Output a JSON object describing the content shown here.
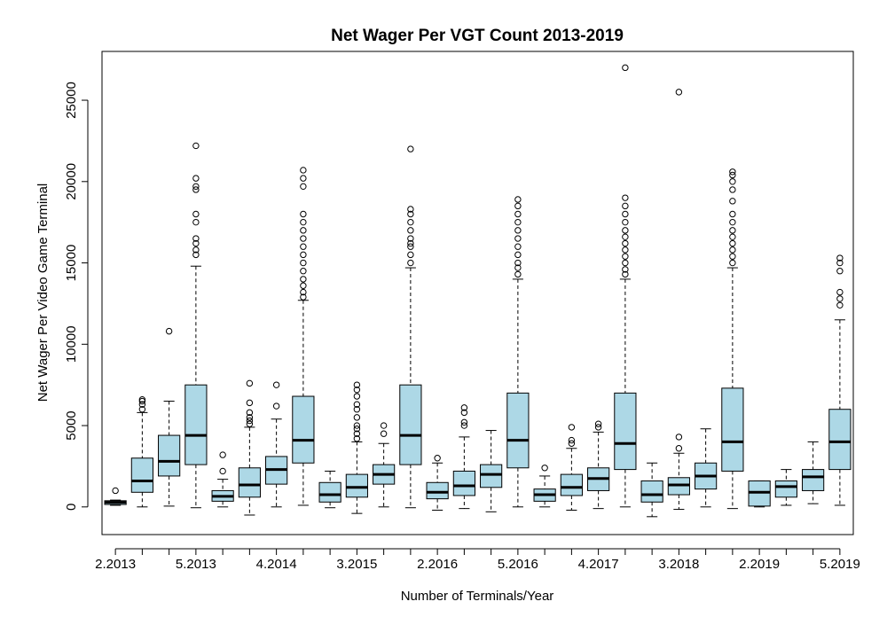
{
  "chart_data": {
    "type": "boxplot",
    "title": "Net Wager Per VGT Count 2013-2019",
    "xlabel": "Number of Terminals/Year",
    "ylabel": "Net Wager Per Video Game Terminal",
    "ylim": [
      -1700,
      28000
    ],
    "y_ticks": [
      0,
      5000,
      10000,
      15000,
      20000,
      25000
    ],
    "x_tick_labels": [
      "2.2013",
      "5.2013",
      "4.2014",
      "3.2015",
      "2.2016",
      "5.2016",
      "4.2017",
      "3.2018",
      "2.2019",
      "5.2019"
    ],
    "x_tick_label_positions": [
      1,
      4,
      7,
      10,
      13,
      16,
      19,
      22,
      25,
      28
    ],
    "grid": false,
    "box_fill": "#add8e6",
    "boxes": [
      {
        "x": 1,
        "min": 100,
        "q1": 150,
        "median": 280,
        "q3": 380,
        "max": 420,
        "outliers": [
          1000
        ]
      },
      {
        "x": 2,
        "min": 0,
        "q1": 900,
        "median": 1600,
        "q3": 3000,
        "max": 5800,
        "outliers": [
          6000,
          6300,
          6500,
          6600
        ]
      },
      {
        "x": 3,
        "min": 50,
        "q1": 1900,
        "median": 2800,
        "q3": 4400,
        "max": 6500,
        "outliers": [
          10800
        ]
      },
      {
        "x": 4,
        "min": -50,
        "q1": 2600,
        "median": 4400,
        "q3": 7500,
        "max": 14800,
        "outliers": [
          15500,
          15800,
          16200,
          16500,
          17500,
          18000,
          19500,
          19700,
          20200,
          22200
        ]
      },
      {
        "x": 5,
        "min": 0,
        "q1": 350,
        "median": 650,
        "q3": 1000,
        "max": 1700,
        "outliers": [
          2200,
          3200
        ]
      },
      {
        "x": 6,
        "min": -500,
        "q1": 600,
        "median": 1350,
        "q3": 2400,
        "max": 4900,
        "outliers": [
          5100,
          5300,
          5500,
          5800,
          6400,
          7600
        ]
      },
      {
        "x": 7,
        "min": 0,
        "q1": 1400,
        "median": 2300,
        "q3": 3100,
        "max": 5400,
        "outliers": [
          6200,
          7500
        ]
      },
      {
        "x": 8,
        "min": 100,
        "q1": 2700,
        "median": 4100,
        "q3": 6800,
        "max": 12700,
        "outliers": [
          12900,
          13200,
          13600,
          14000,
          14500,
          15000,
          15500,
          16000,
          16500,
          17000,
          17500,
          18000,
          19700,
          20200,
          20700
        ]
      },
      {
        "x": 9,
        "min": -50,
        "q1": 300,
        "median": 750,
        "q3": 1500,
        "max": 2200,
        "outliers": []
      },
      {
        "x": 10,
        "min": -400,
        "q1": 600,
        "median": 1200,
        "q3": 2000,
        "max": 4000,
        "outliers": [
          4200,
          4500,
          4800,
          5000,
          5500,
          6000,
          6300,
          6800,
          7200,
          7500
        ]
      },
      {
        "x": 11,
        "min": 0,
        "q1": 1400,
        "median": 2000,
        "q3": 2600,
        "max": 3900,
        "outliers": [
          4500,
          5000
        ]
      },
      {
        "x": 12,
        "min": -50,
        "q1": 2600,
        "median": 4400,
        "q3": 7500,
        "max": 14700,
        "outliers": [
          15000,
          15500,
          16000,
          16200,
          16500,
          17000,
          17500,
          18000,
          18300,
          22000
        ]
      },
      {
        "x": 13,
        "min": -200,
        "q1": 500,
        "median": 900,
        "q3": 1500,
        "max": 2700,
        "outliers": [
          3000
        ]
      },
      {
        "x": 14,
        "min": -100,
        "q1": 700,
        "median": 1300,
        "q3": 2200,
        "max": 4300,
        "outliers": [
          5000,
          5200,
          5800,
          6100
        ]
      },
      {
        "x": 15,
        "min": -300,
        "q1": 1200,
        "median": 2000,
        "q3": 2600,
        "max": 4700,
        "outliers": []
      },
      {
        "x": 16,
        "min": 0,
        "q1": 2400,
        "median": 4100,
        "q3": 7000,
        "max": 14000,
        "outliers": [
          14300,
          14700,
          15000,
          15500,
          16000,
          16500,
          17000,
          17500,
          18000,
          18500,
          18900
        ]
      },
      {
        "x": 17,
        "min": 0,
        "q1": 350,
        "median": 750,
        "q3": 1100,
        "max": 1900,
        "outliers": [
          2400
        ]
      },
      {
        "x": 18,
        "min": -200,
        "q1": 700,
        "median": 1200,
        "q3": 2000,
        "max": 3600,
        "outliers": [
          3900,
          4100,
          4900
        ]
      },
      {
        "x": 19,
        "min": -100,
        "q1": 1000,
        "median": 1750,
        "q3": 2400,
        "max": 4600,
        "outliers": [
          4900,
          5100
        ]
      },
      {
        "x": 20,
        "min": 0,
        "q1": 2300,
        "median": 3900,
        "q3": 7000,
        "max": 14000,
        "outliers": [
          14300,
          14600,
          15000,
          15400,
          15800,
          16200,
          16600,
          17000,
          17500,
          18000,
          18500,
          19000,
          27000
        ]
      },
      {
        "x": 21,
        "min": -600,
        "q1": 300,
        "median": 750,
        "q3": 1600,
        "max": 2700,
        "outliers": []
      },
      {
        "x": 22,
        "min": -150,
        "q1": 750,
        "median": 1350,
        "q3": 1800,
        "max": 3300,
        "outliers": [
          3600,
          4300,
          25500
        ]
      },
      {
        "x": 23,
        "min": 0,
        "q1": 1100,
        "median": 1900,
        "q3": 2700,
        "max": 4800,
        "outliers": []
      },
      {
        "x": 24,
        "min": -100,
        "q1": 2200,
        "median": 4000,
        "q3": 7300,
        "max": 14700,
        "outliers": [
          15000,
          15400,
          15800,
          16200,
          16600,
          17000,
          17500,
          18000,
          18800,
          19500,
          20000,
          20400,
          20600
        ]
      },
      {
        "x": 25,
        "min": 0,
        "q1": 50,
        "median": 900,
        "q3": 1600,
        "max": 1600,
        "outliers": []
      },
      {
        "x": 26,
        "min": 100,
        "q1": 600,
        "median": 1250,
        "q3": 1600,
        "max": 2300,
        "outliers": []
      },
      {
        "x": 27,
        "min": 200,
        "q1": 1000,
        "median": 1850,
        "q3": 2300,
        "max": 4000,
        "outliers": []
      },
      {
        "x": 28,
        "min": 100,
        "q1": 2300,
        "median": 4000,
        "q3": 6000,
        "max": 11500,
        "outliers": [
          12400,
          12800,
          13200,
          14500,
          15000,
          15300
        ]
      }
    ]
  }
}
